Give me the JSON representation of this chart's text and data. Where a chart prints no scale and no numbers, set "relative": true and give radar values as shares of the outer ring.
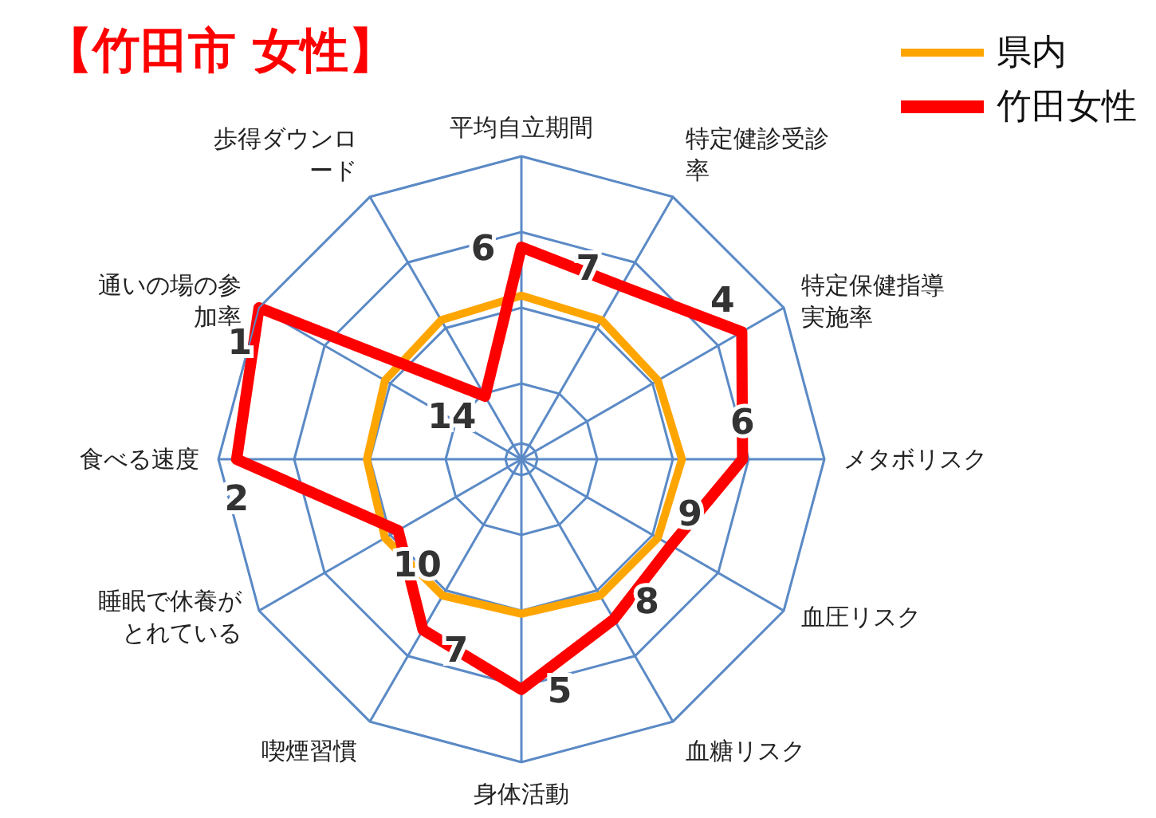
{
  "chart_data": {
    "type": "radar",
    "title": "【竹田市 女性】",
    "relative": true,
    "legend": "top right",
    "grid": true,
    "categories": [
      "平均自立期間",
      "特定健診受診率",
      "特定保健指導実施率",
      "メタボリスク",
      "血圧リスク",
      "血糖リスク",
      "身体活動",
      "喫煙習慣",
      "睡眠で休養がとれている",
      "食べる速度",
      "通いの場の参加率",
      "歩得ダウンロード"
    ],
    "series": [
      {
        "name": "県内",
        "color": "#ffa500",
        "values": [
          0.54,
          0.53,
          0.52,
          0.53,
          0.52,
          0.52,
          0.51,
          0.52,
          0.52,
          0.51,
          0.52,
          0.53
        ]
      },
      {
        "name": "竹田女性",
        "color": "#ff0000",
        "values": [
          0.7,
          0.66,
          0.84,
          0.73,
          0.57,
          0.61,
          0.76,
          0.65,
          0.47,
          0.94,
          1.0,
          0.24
        ]
      }
    ],
    "annotations": [
      {
        "text": "6",
        "x": "平均自立期間"
      },
      {
        "text": "7",
        "x": "特定健診受診率"
      },
      {
        "text": "4",
        "x": "特定保健指導実施率"
      },
      {
        "text": "6",
        "x": "メタボリスク"
      },
      {
        "text": "9",
        "x": "血圧リスク"
      },
      {
        "text": "8",
        "x": "血糖リスク"
      },
      {
        "text": "5",
        "x": "身体活動"
      },
      {
        "text": "7",
        "x": "喫煙習慣"
      },
      {
        "text": "10",
        "x": "睡眠で休養がとれている"
      },
      {
        "text": "2",
        "x": "食べる速度"
      },
      {
        "text": "1",
        "x": "通いの場の参加率"
      },
      {
        "text": "14",
        "x": "歩得ダウンロード"
      }
    ]
  }
}
